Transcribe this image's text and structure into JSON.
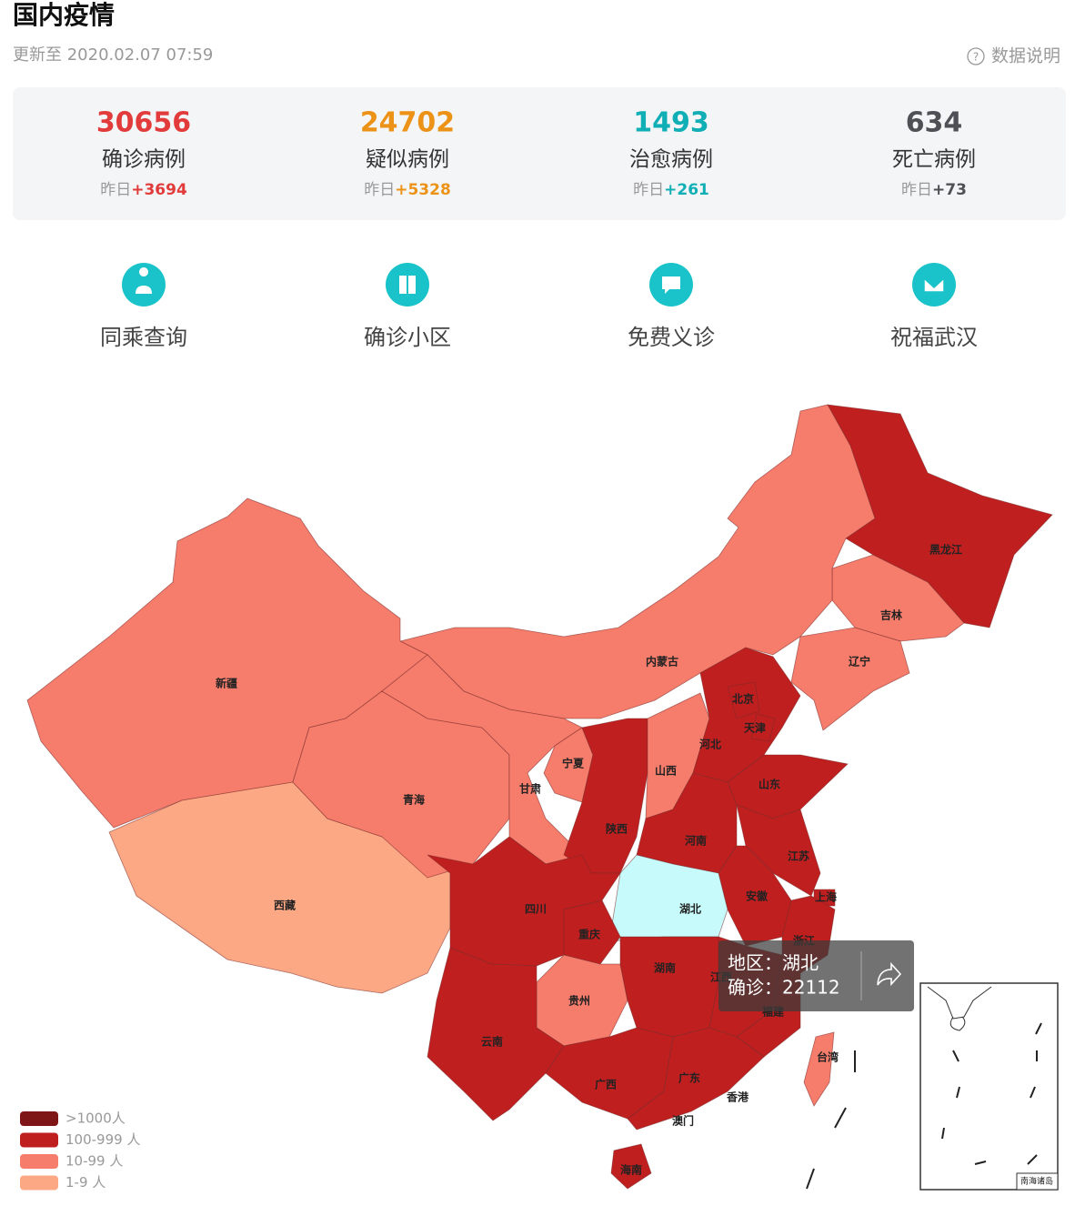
{
  "header": {
    "title": "国内疫情",
    "updated": "更新至 2020.02.07 07:59",
    "help": "数据说明"
  },
  "stats": [
    {
      "value": 30656,
      "label": "确诊病例",
      "prefix": "昨日",
      "delta": "+3694",
      "color": "#e23b3b"
    },
    {
      "value": 24702,
      "label": "疑似病例",
      "prefix": "昨日",
      "delta": "+5328",
      "color": "#ec9217"
    },
    {
      "value": 1493,
      "label": "治愈病例",
      "prefix": "昨日",
      "delta": "+261",
      "color": "#10aeb5"
    },
    {
      "value": 634,
      "label": "死亡病例",
      "prefix": "昨日",
      "delta": "+73",
      "color": "#4d5054"
    }
  ],
  "links": [
    "同乘查询",
    "确诊小区",
    "免费义诊",
    "祝福武汉"
  ],
  "map": {
    "provinces": [
      {
        "name": "黑龙江",
        "color": "#bf1f1f"
      },
      {
        "name": "吉林",
        "color": "#f67c6b"
      },
      {
        "name": "辽宁",
        "color": "#f67c6b"
      },
      {
        "name": "内蒙古",
        "color": "#f67c6b"
      },
      {
        "name": "新疆",
        "color": "#f67c6b"
      },
      {
        "name": "西藏",
        "color": "#fca884"
      },
      {
        "name": "青海",
        "color": "#f67c6b"
      },
      {
        "name": "甘肃",
        "color": "#f67c6b"
      },
      {
        "name": "宁夏",
        "color": "#f67c6b"
      },
      {
        "name": "陕西",
        "color": "#bf1f1f"
      },
      {
        "name": "山西",
        "color": "#f67c6b"
      },
      {
        "name": "河北",
        "color": "#bf1f1f"
      },
      {
        "name": "北京",
        "color": "#bf1f1f"
      },
      {
        "name": "天津",
        "color": "#bf1f1f"
      },
      {
        "name": "山东",
        "color": "#bf1f1f"
      },
      {
        "name": "河南",
        "color": "#bf1f1f"
      },
      {
        "name": "江苏",
        "color": "#bf1f1f"
      },
      {
        "name": "上海",
        "color": "#bf1f1f"
      },
      {
        "name": "安徽",
        "color": "#bf1f1f"
      },
      {
        "name": "浙江",
        "color": "#bf1f1f"
      },
      {
        "name": "湖北",
        "color": "#c7fbfb"
      },
      {
        "name": "重庆",
        "color": "#bf1f1f"
      },
      {
        "name": "四川",
        "color": "#bf1f1f"
      },
      {
        "name": "贵州",
        "color": "#f67c6b"
      },
      {
        "name": "湖南",
        "color": "#bf1f1f"
      },
      {
        "name": "江西",
        "color": "#bf1f1f"
      },
      {
        "name": "福建",
        "color": "#bf1f1f"
      },
      {
        "name": "云南",
        "color": "#bf1f1f"
      },
      {
        "name": "广西",
        "color": "#bf1f1f"
      },
      {
        "name": "广东",
        "color": "#bf1f1f"
      },
      {
        "name": "香港",
        "color": "#bf1f1f"
      },
      {
        "name": "澳门",
        "color": "#bf1f1f"
      },
      {
        "name": "海南",
        "color": "#bf1f1f"
      },
      {
        "name": "台湾",
        "color": "#f67c6b"
      }
    ],
    "tooltip": [
      "地区：湖北",
      "确诊：22112"
    ],
    "inset_label": "南海诸岛",
    "legend": [
      {
        "label": ">1000人",
        "color": "#7e1517"
      },
      {
        "label": "100-999 人",
        "color": "#bf1f1f"
      },
      {
        "label": "10-99 人",
        "color": "#f67c6b"
      },
      {
        "label": "1-9 人",
        "color": "#fca884"
      }
    ]
  }
}
